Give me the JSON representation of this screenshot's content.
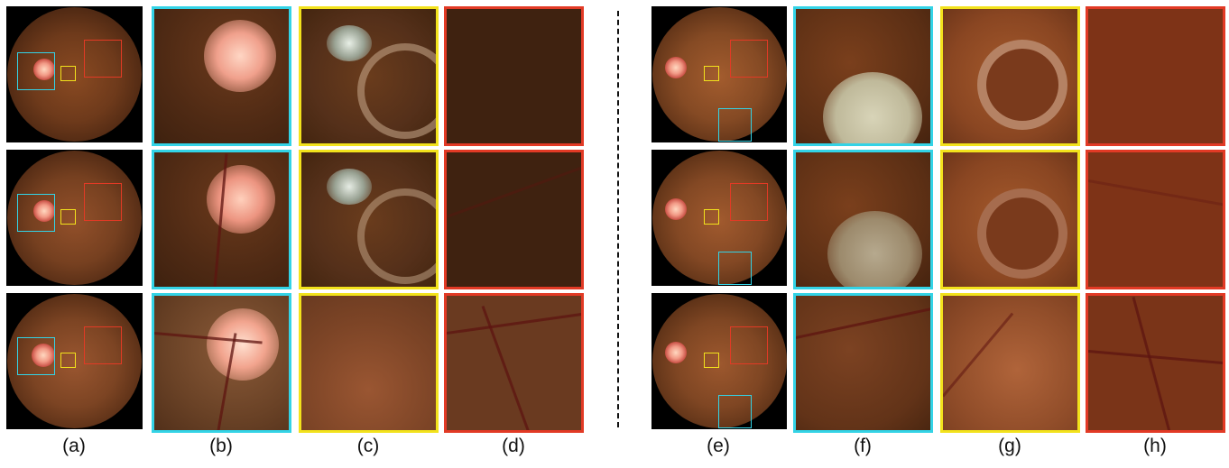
{
  "labels": {
    "a": "(a)",
    "b": "(b)",
    "c": "(c)",
    "d": "(d)",
    "e": "(e)",
    "f": "(f)",
    "g": "(g)",
    "h": "(h)"
  },
  "colors": {
    "cyan": "#33d3e6",
    "yellow": "#f2e21c",
    "red": "#e23a25",
    "divider": "#111111"
  }
}
